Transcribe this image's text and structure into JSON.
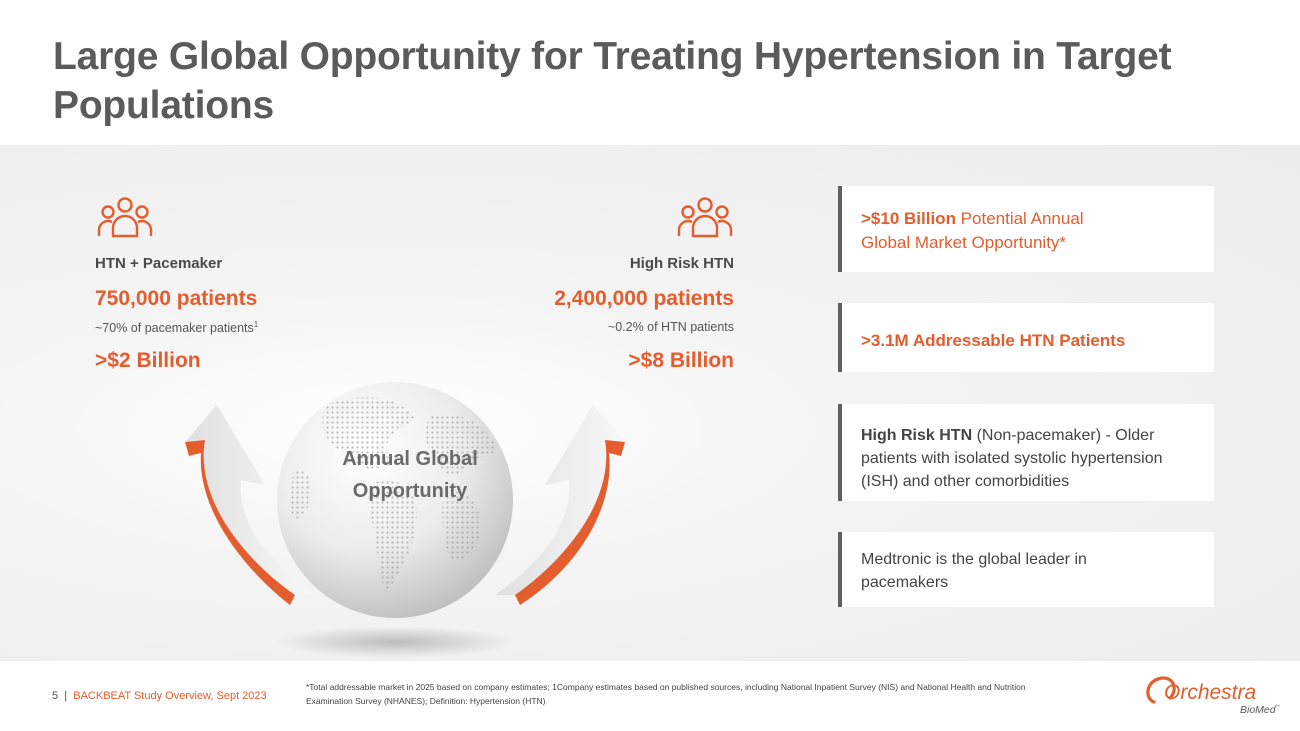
{
  "title": "Large Global Opportunity for Treating Hypertension in Target Populations",
  "left_segment": {
    "label": "HTN + Pacemaker",
    "patients": "750,000 patients",
    "note": "~70% of pacemaker patients",
    "note_sup": "1",
    "value": ">$2 Billion"
  },
  "right_segment": {
    "label": "High Risk HTN",
    "patients": "2,400,000 patients",
    "note": "~0.2% of HTN patients",
    "value": ">$8 Billion"
  },
  "globe": {
    "line1": "Annual Global",
    "line2": "Opportunity"
  },
  "cards": {
    "market": {
      "bold": ">$10 Billion",
      "rest1": " Potential Annual",
      "line2": "Global Market Opportunity*"
    },
    "addressable": {
      "text": ">3.1M Addressable HTN Patients"
    },
    "high_risk": {
      "bold": "High Risk HTN",
      "rest": " (Non-pacemaker) - Older patients with isolated systolic hypertension (ISH) and other comorbidities"
    },
    "medtronic": {
      "text": "Medtronic is the global leader in pacemakers"
    }
  },
  "footer": {
    "page_number": "5",
    "separator": "|",
    "study": "BACKBEAT Study Overview, Sept 2023",
    "footnote": "*Total addressable market in 2025 based on company estimates; 1Company estimates based on published sources, including National Inpatient Survey (NIS) and National Health and Nutrition Examination Survey (NHANES); Definition: Hypertension (HTN)"
  },
  "logo": {
    "name": "Orchestra",
    "sub": "BioMed",
    "tm": "™"
  },
  "colors": {
    "accent": "#e35d2e",
    "title": "#5b5b5b",
    "bar": "#5f5f5f"
  }
}
